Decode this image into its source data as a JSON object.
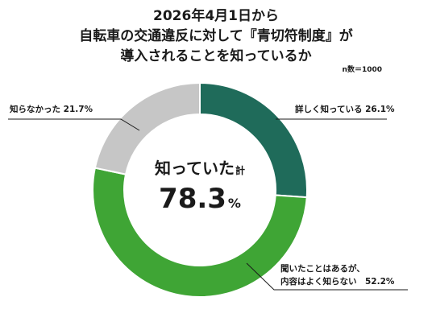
{
  "chart_data": {
    "type": "pie",
    "style": "donut",
    "title_lines": [
      "2026年4月1日から",
      "自転車の交通違反に対して『青切符制度』が",
      "導入されることを知っているか"
    ],
    "sample_note": "n数＝1000",
    "center": {
      "label": "知っていた",
      "label_suffix": "計",
      "value": "78.3",
      "unit": "%"
    },
    "slices": [
      {
        "label_lines": [
          "詳しく知っている 26.1%"
        ],
        "value": 26.1,
        "color": "#1f6b5a"
      },
      {
        "label_lines": [
          "聞いたことはあるが、",
          "内容はよく知らない　52.2%"
        ],
        "value": 52.2,
        "color": "#3fa535"
      },
      {
        "label_lines": [
          "知らなかった 21.7%"
        ],
        "value": 21.7,
        "color": "#c6c6c6"
      }
    ]
  }
}
